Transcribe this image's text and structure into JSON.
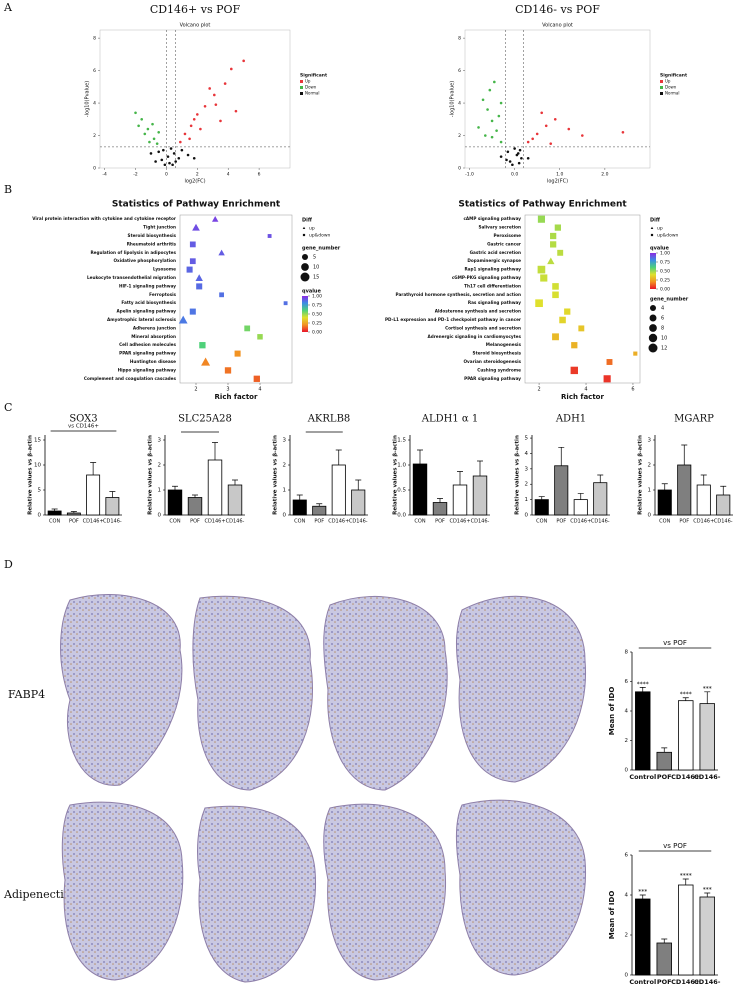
{
  "panel_labels": [
    "A",
    "B",
    "C",
    "D"
  ],
  "row_labels": [
    "FABP4",
    "Adipenectin"
  ],
  "chart_data": [
    {
      "type": "scatter",
      "title": "CD146+ vs POF",
      "subtitle": "Volcano plot",
      "x_label": "log2(FC)",
      "y_label": "-log10(Pvalue)",
      "xlim": [
        -4.3,
        8
      ],
      "xticks": [
        -4,
        -2,
        0,
        2,
        4,
        6
      ],
      "ylim": [
        0,
        8.5
      ],
      "yticks": [
        0,
        2,
        4,
        6,
        8
      ],
      "vlines": [
        0,
        0.585
      ],
      "hlines": [
        1.3
      ],
      "legend_title": "Significant",
      "series": [
        {
          "name": "Up",
          "color": "#e8353a",
          "x": [
            1.2,
            1.8,
            2.5,
            3.1,
            3.8,
            4.2,
            5.0,
            2.2,
            1.5,
            3.5,
            4.5,
            2.8,
            0.9,
            1.6,
            2.0,
            3.2
          ],
          "values": [
            2.1,
            3.0,
            3.8,
            4.5,
            5.2,
            6.1,
            6.6,
            2.4,
            1.8,
            2.9,
            3.5,
            4.9,
            1.6,
            2.6,
            3.3,
            3.9
          ]
        },
        {
          "name": "Down",
          "color": "#45b549",
          "x": [
            -0.8,
            -1.2,
            -1.6,
            -2.0,
            -1.1,
            -0.9,
            -1.4,
            -0.6,
            -1.8,
            -0.5
          ],
          "values": [
            1.8,
            2.4,
            3.0,
            3.4,
            1.6,
            2.7,
            2.1,
            1.5,
            2.6,
            2.2
          ]
        },
        {
          "name": "Normal",
          "color": "#111111",
          "x": [
            -0.3,
            0.2,
            0.5,
            -0.5,
            0.8,
            1.0,
            -0.1,
            0.3,
            -0.7,
            1.4,
            0.1,
            -1.0,
            0.6,
            1.8,
            -0.2,
            0.4
          ],
          "values": [
            0.5,
            0.3,
            0.9,
            1.0,
            0.6,
            1.1,
            0.2,
            1.2,
            0.4,
            0.8,
            0.7,
            0.9,
            0.4,
            0.6,
            1.1,
            0.2
          ]
        }
      ]
    },
    {
      "type": "scatter",
      "title": "CD146- vs POF",
      "subtitle": "Volcano plot",
      "x_label": "log2(FC)",
      "y_label": "-log10(Pvalue)",
      "xlim": [
        -1.1,
        3.0
      ],
      "xticks": [
        {
          "value": -1,
          "label": "-1.0"
        },
        {
          "value": 0,
          "label": "0.0"
        },
        {
          "value": 1,
          "label": "1.0"
        },
        {
          "value": 2,
          "label": "2.0"
        }
      ],
      "ylim": [
        0,
        8.5
      ],
      "yticks": [
        0,
        2,
        4,
        6,
        8
      ],
      "vlines": [
        -0.2,
        0.2
      ],
      "hlines": [
        1.3
      ],
      "legend_title": "Significant",
      "series": [
        {
          "name": "Up",
          "color": "#e8353a",
          "x": [
            0.3,
            0.5,
            0.7,
            0.9,
            1.2,
            0.4,
            0.6,
            1.5,
            2.4,
            0.8
          ],
          "values": [
            1.6,
            2.1,
            2.6,
            3.0,
            2.4,
            1.8,
            3.4,
            2.0,
            2.2,
            1.5
          ]
        },
        {
          "name": "Down",
          "color": "#45b549",
          "x": [
            -0.3,
            -0.4,
            -0.5,
            -0.6,
            -0.7,
            -0.35,
            -0.55,
            -0.8,
            -0.45,
            -0.65,
            -0.3,
            -0.5
          ],
          "values": [
            1.6,
            2.3,
            2.9,
            3.6,
            4.2,
            3.2,
            4.8,
            2.5,
            5.3,
            2.0,
            4.0,
            1.9
          ]
        },
        {
          "name": "Normal",
          "color": "#111111",
          "x": [
            -0.1,
            0.05,
            0.1,
            -0.15,
            0.15,
            0.0,
            -0.05,
            0.12,
            -0.18,
            0.08,
            0.3,
            -0.3
          ],
          "values": [
            0.4,
            0.8,
            0.3,
            1.0,
            0.6,
            1.2,
            0.2,
            1.1,
            0.5,
            0.9,
            0.6,
            0.7
          ]
        }
      ]
    },
    {
      "type": "dot",
      "title": "Statistics of Pathway Enrichment",
      "x_label": "Rich factor",
      "xlim": [
        1.5,
        5.0
      ],
      "xticks": [
        2,
        3,
        4
      ],
      "categories": [
        "Viral protein interaction with cytokine and cytokine receptor",
        "Tight junction",
        "Steroid biosynthesis",
        "Rheumatoid arthritis",
        "Regulation of lipolysis in adipocytes",
        "Oxidative phosphorylation",
        "Lysosome",
        "Leukocyte transendothelial migration",
        "HIF-1 signaling pathway",
        "Ferroptosis",
        "Fatty acid biosynthesis",
        "Apelin signaling pathway",
        "Amyotrophic lateral sclerosis",
        "Adherens junction",
        "Mineral absorption",
        "Cell adhesion molecules",
        "PPAR signaling pathway",
        "Huntington disease",
        "Hippo signaling pathway",
        "Complement and coagulation cascades"
      ],
      "values": [
        2.6,
        2.0,
        4.3,
        1.9,
        2.8,
        1.9,
        1.8,
        2.1,
        2.1,
        2.8,
        4.8,
        1.9,
        1.6,
        3.6,
        4.0,
        2.2,
        3.3,
        2.3,
        3.0,
        3.9
      ],
      "gene_number": [
        6,
        10,
        2,
        7,
        6,
        7,
        8,
        9,
        8,
        4,
        2,
        8,
        14,
        7,
        6,
        9,
        8,
        15,
        9,
        9
      ],
      "qvalue": [
        0.95,
        0.93,
        0.92,
        0.9,
        0.9,
        0.9,
        0.88,
        0.88,
        0.87,
        0.86,
        0.86,
        0.85,
        0.84,
        0.55,
        0.5,
        0.6,
        0.2,
        0.18,
        0.15,
        0.12
      ],
      "diff": [
        "up",
        "up",
        "up&down",
        "up&down",
        "up",
        "up&down",
        "up&down",
        "up",
        "up&down",
        "up&down",
        "up&down",
        "up&down",
        "up",
        "up&down",
        "up&down",
        "up&down",
        "up&down",
        "up",
        "up&down",
        "up&down"
      ],
      "diff_title": "Diff",
      "diff_levels": [
        "up",
        "up&down"
      ],
      "size_title": "gene_number",
      "size_levels": [
        5,
        10,
        15
      ],
      "color_title": "qvalue",
      "colorscale": [
        "#e8142a",
        "#f29322",
        "#dfe02c",
        "#4fd17a",
        "#3b8de4",
        "#8c2be2"
      ],
      "color_ticks": [
        {
          "value": 1,
          "label": "1.00"
        },
        {
          "value": 0.75,
          "label": "0.75"
        },
        {
          "value": 0.5,
          "label": "0.50"
        },
        {
          "value": 0.25,
          "label": "0.25"
        },
        {
          "value": 0,
          "label": "0.00"
        }
      ],
      "legend_order": [
        "diff",
        "size",
        "color"
      ]
    },
    {
      "type": "dot",
      "title": "Statistics of Pathway Enrichment",
      "x_label": "Rich factor",
      "xlim": [
        1.4,
        6.3
      ],
      "xticks": [
        2,
        4,
        6
      ],
      "categories": [
        "cAMP signaling pathway",
        "Salivary secretion",
        "Peroxisome",
        "Gastric cancer",
        "Gastric acid secretion",
        "Dopaminergic synapse",
        "Rap1 signaling pathway",
        "cGMP-PKG signaling pathway",
        "Th17 cell differentiation",
        "Parathyroid hormone synthesis, secretion and action",
        "Ras signaling pathway",
        "Aldosterone synthesis and secretion",
        "PD-L1 expression and PD-1 checkpoint pathway in cancer",
        "Cortisol synthesis and secretion",
        "Adrenergic signaling in cardiomyocytes",
        "Melanogenesis",
        "Steroid biosynthesis",
        "Ovarian steroidogenesis",
        "Cushing syndrome",
        "PPAR signaling pathway"
      ],
      "values": [
        2.1,
        2.8,
        2.6,
        2.6,
        2.9,
        2.5,
        2.1,
        2.2,
        2.7,
        2.7,
        2.0,
        3.2,
        3.0,
        3.8,
        2.7,
        3.5,
        6.1,
        5.0,
        3.5,
        4.9
      ],
      "gene_number": [
        10,
        7,
        7,
        7,
        6,
        7,
        12,
        10,
        8,
        8,
        12,
        7,
        8,
        6,
        9,
        7,
        2,
        6,
        11,
        10
      ],
      "qvalue": [
        0.5,
        0.48,
        0.47,
        0.46,
        0.45,
        0.45,
        0.44,
        0.43,
        0.42,
        0.41,
        0.4,
        0.38,
        0.37,
        0.33,
        0.3,
        0.28,
        0.27,
        0.14,
        0.06,
        0.05
      ],
      "diff": [
        "up&down",
        "up&down",
        "up&down",
        "up&down",
        "up&down",
        "up",
        "up&down",
        "up&down",
        "up&down",
        "up&down",
        "up&down",
        "up&down",
        "up&down",
        "up&down",
        "up&down",
        "up&down",
        "up&down",
        "up&down",
        "up&down",
        "up&down"
      ],
      "diff_title": "Diff",
      "diff_levels": [
        "up",
        "up&down"
      ],
      "size_title": "gene_number",
      "size_levels": [
        4,
        6,
        8,
        10,
        12
      ],
      "color_title": "qvalue",
      "colorscale": [
        "#e8142a",
        "#f29322",
        "#dfe02c",
        "#4fd17a",
        "#3b8de4",
        "#8c2be2"
      ],
      "color_ticks": [
        {
          "value": 1,
          "label": "1.00"
        },
        {
          "value": 0.75,
          "label": "0.75"
        },
        {
          "value": 0.5,
          "label": "0.50"
        },
        {
          "value": 0.25,
          "label": "0.25"
        },
        {
          "value": 0,
          "label": "0.00"
        }
      ],
      "legend_order": [
        "diff",
        "color",
        "size"
      ]
    },
    {
      "type": "bar",
      "title": "SOX3",
      "y_label": "Relative values vs β-actin",
      "categories": [
        "CON",
        "POF",
        "CD146+",
        "CD146-"
      ],
      "values": [
        0.8,
        0.4,
        8.0,
        3.5
      ],
      "errors": [
        0.4,
        0.3,
        2.5,
        1.2
      ],
      "colors": [
        "#000000",
        "#7f7f7f",
        "#ffffff",
        "#c8c8c8"
      ],
      "ylim": [
        0,
        16
      ],
      "yticks": [
        0,
        5,
        10,
        15
      ],
      "annotation": "vs CD146+"
    },
    {
      "type": "bar",
      "title": "SLC25A28",
      "y_label": "Relative values vs β-actin",
      "categories": [
        "CON",
        "POF",
        "CD146+",
        "CD146-"
      ],
      "values": [
        1.0,
        0.7,
        2.2,
        1.2
      ],
      "errors": [
        0.15,
        0.1,
        0.7,
        0.2
      ],
      "colors": [
        "#000000",
        "#7f7f7f",
        "#ffffff",
        "#c8c8c8"
      ],
      "ylim": [
        0,
        3.2
      ],
      "yticks": [
        0,
        1,
        2,
        3
      ]
    },
    {
      "type": "bar",
      "title": "AKRLB8",
      "y_label": "Relative values vs β-actin",
      "categories": [
        "CON",
        "POF",
        "CD146+",
        "CD146-"
      ],
      "values": [
        0.6,
        0.35,
        2.0,
        1.0
      ],
      "errors": [
        0.2,
        0.1,
        0.6,
        0.4
      ],
      "colors": [
        "#000000",
        "#7f7f7f",
        "#ffffff",
        "#c8c8c8"
      ],
      "ylim": [
        0,
        3.2
      ],
      "yticks": [
        0,
        1,
        2,
        3
      ]
    },
    {
      "type": "bar",
      "title": "ALDH1 α 1",
      "y_label": "Relative values vs β-actin",
      "categories": [
        "CON",
        "POF",
        "CD146+",
        "CD146-"
      ],
      "values": [
        1.02,
        0.25,
        0.6,
        0.78
      ],
      "errors": [
        0.28,
        0.08,
        0.27,
        0.3
      ],
      "colors": [
        "#000000",
        "#7f7f7f",
        "#ffffff",
        "#c8c8c8"
      ],
      "ylim": [
        0,
        1.6
      ],
      "yticks": [
        {
          "value": 0,
          "label": "0.0"
        },
        {
          "value": 0.5,
          "label": "0.5"
        },
        {
          "value": 1,
          "label": "1.0"
        },
        {
          "value": 1.5,
          "label": "1.5"
        }
      ]
    },
    {
      "type": "bar",
      "title": "ADH1",
      "y_label": "Relative values vs β-actin",
      "categories": [
        "CON",
        "POF",
        "CD146+",
        "CD146-"
      ],
      "values": [
        1.0,
        3.2,
        1.0,
        2.1
      ],
      "errors": [
        0.2,
        1.2,
        0.4,
        0.5
      ],
      "colors": [
        "#000000",
        "#7f7f7f",
        "#ffffff",
        "#c8c8c8"
      ],
      "ylim": [
        0,
        5.2
      ],
      "yticks": [
        0,
        1,
        2,
        3,
        4,
        5
      ]
    },
    {
      "type": "bar",
      "title": "MGARP",
      "y_label": "Relative values vs β-actin",
      "categories": [
        "CON",
        "POF",
        "CD146+",
        "CD146-"
      ],
      "values": [
        1.0,
        2.0,
        1.2,
        0.8
      ],
      "errors": [
        0.25,
        0.8,
        0.4,
        0.35
      ],
      "colors": [
        "#000000",
        "#7f7f7f",
        "#ffffff",
        "#c8c8c8"
      ],
      "ylim": [
        0,
        3.2
      ],
      "yticks": [
        0,
        1,
        2,
        3
      ]
    },
    {
      "type": "bar",
      "y_label": "Mean of IDO",
      "categories": [
        "Control",
        "POF",
        "CD146+",
        "CD146-"
      ],
      "values": [
        5.3,
        1.2,
        4.7,
        4.5
      ],
      "errors": [
        0.3,
        0.3,
        0.2,
        0.8
      ],
      "colors": [
        "#000000",
        "#7f7f7f",
        "#ffffff",
        "#d0d0d0"
      ],
      "ylim": [
        0,
        8
      ],
      "yticks": [
        0,
        2,
        4,
        6,
        8
      ],
      "annotation": "vs POF",
      "significance": [
        "****",
        null,
        "****",
        "***"
      ]
    },
    {
      "type": "bar",
      "y_label": "Mean of IDO",
      "categories": [
        "Control",
        "POF",
        "CD146+",
        "CD146-"
      ],
      "values": [
        3.8,
        1.6,
        4.5,
        3.9
      ],
      "errors": [
        0.2,
        0.2,
        0.3,
        0.2
      ],
      "colors": [
        "#000000",
        "#7f7f7f",
        "#ffffff",
        "#d0d0d0"
      ],
      "ylim": [
        0,
        6
      ],
      "yticks": [
        0,
        2,
        4,
        6
      ],
      "annotation": "vs POF",
      "significance": [
        "***",
        null,
        "****",
        "***"
      ]
    }
  ]
}
